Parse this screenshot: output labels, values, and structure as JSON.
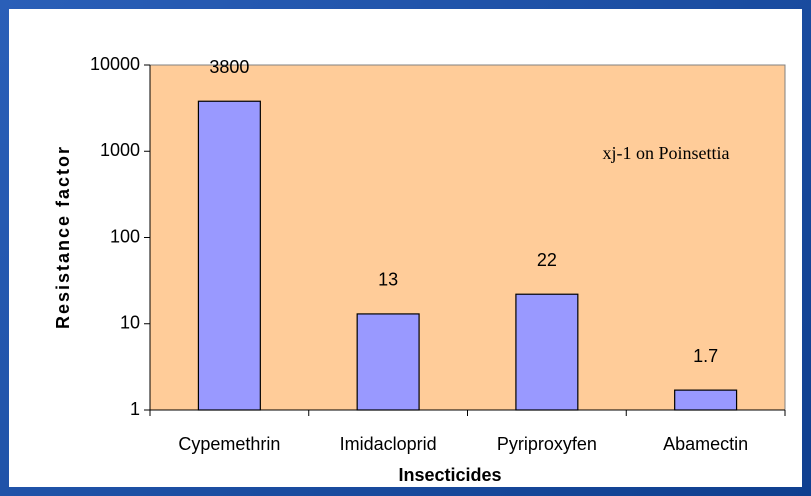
{
  "chart_data": {
    "type": "bar",
    "y_axis_label": "Resistance factor",
    "x_axis_label": "Insecticides",
    "annotation": "xj-1 on Poinsettia",
    "categories": [
      "Cypemethrin",
      "Imidacloprid",
      "Pyriproxyfen",
      "Abamectin"
    ],
    "values": [
      3800,
      13,
      22,
      1.7
    ],
    "color": "#9999ff",
    "plot_background": "#ffcc99",
    "log_scale": true,
    "ylim": [
      1,
      10000
    ],
    "yticks": [
      1,
      10,
      100,
      1000,
      10000
    ],
    "grid": false
  }
}
